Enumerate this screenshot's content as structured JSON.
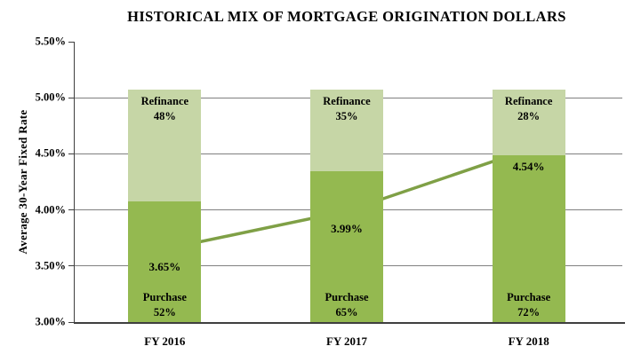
{
  "chart_data": {
    "type": "bar",
    "subtype": "stacked-percent-columns-with-line-overlay",
    "title": "HISTORICAL MIX OF MORTGAGE ORIGINATION DOLLARS",
    "ylabel": "Average 30-Year Fixed Rate",
    "categories": [
      "FY 2016",
      "FY 2017",
      "FY 2018"
    ],
    "bar_series": [
      {
        "name": "Purchase",
        "values_pct": [
          52,
          65,
          72
        ],
        "segment_labels": [
          "52%",
          "65%",
          "72%"
        ],
        "color": "#94B950",
        "label_position": "bottom"
      },
      {
        "name": "Refinance",
        "values_pct": [
          48,
          35,
          28
        ],
        "segment_labels": [
          "48%",
          "35%",
          "28%"
        ],
        "color": "#C6D6A6",
        "label_position": "top"
      }
    ],
    "line_series": {
      "name": "Average 30-Year Fixed Rate",
      "values": [
        3.65,
        3.99,
        4.54
      ],
      "point_labels": [
        "3.65%",
        "3.99%",
        "4.54%"
      ],
      "color": "#7FA046",
      "marker": "diamond",
      "marker_fill": "#C5D795"
    },
    "y_axis": {
      "min": 3.0,
      "max": 5.5,
      "tick_values": [
        3.0,
        3.5,
        4.0,
        4.5,
        5.0,
        5.5
      ],
      "tick_labels": [
        "3.00%",
        "3.50%",
        "4.00%",
        "4.50%",
        "5.00%",
        "5.50%"
      ],
      "grid": true
    },
    "layout": {
      "bar_stack_top_axis_value": 5.07,
      "gridline_color": "#808080",
      "axis_color": "#3F3F3F",
      "text_color": "#000000",
      "background": "#FFFFFF",
      "legend": "none"
    }
  }
}
